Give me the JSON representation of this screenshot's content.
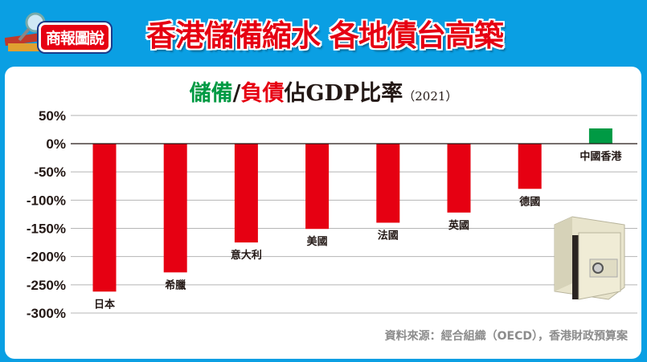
{
  "header": {
    "badge": "商報圖說",
    "headline": "香港儲備縮水 各地債台高築"
  },
  "chart_data": {
    "type": "bar",
    "title_parts": {
      "reserve": "儲備",
      "slash": "/",
      "debt": "負債",
      "rest": "佔GDP比率",
      "year": "（2021）"
    },
    "categories": [
      "日本",
      "希臘",
      "意大利",
      "美國",
      "法國",
      "英國",
      "德國",
      "中國香港"
    ],
    "values": [
      -262,
      -228,
      -175,
      -151,
      -140,
      -122,
      -80,
      27
    ],
    "yticks": [
      "50%",
      "0%",
      "-50%",
      "-100%",
      "-150%",
      "-200%",
      "-250%",
      "-300%"
    ],
    "ytick_values": [
      50,
      0,
      -50,
      -100,
      -150,
      -200,
      -250,
      -300
    ],
    "ylim": [
      -300,
      50
    ],
    "grid": true,
    "colors": {
      "negative": "#e60012",
      "positive": "#009a44"
    }
  },
  "source": "資料來源：經合組織（OECD），香港財政預算案"
}
